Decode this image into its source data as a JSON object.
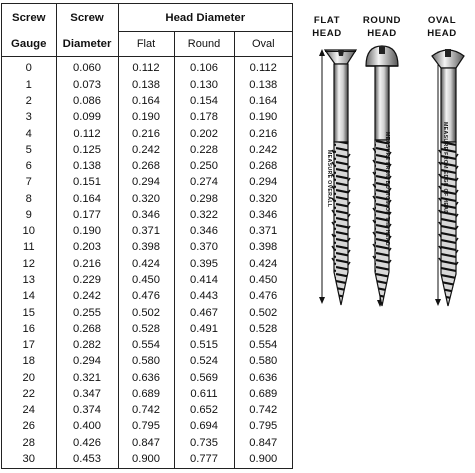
{
  "table": {
    "headers": {
      "screw_gauge_line1": "Screw",
      "screw_gauge_line2": "Gauge",
      "screw_diameter_line1": "Screw",
      "screw_diameter_line2": "Diameter",
      "head_diameter": "Head Diameter",
      "flat": "Flat",
      "round": "Round",
      "oval": "Oval"
    },
    "rows": [
      {
        "gauge": "0",
        "diameter": "0.060",
        "flat": "0.112",
        "round": "0.106",
        "oval": "0.112"
      },
      {
        "gauge": "1",
        "diameter": "0.073",
        "flat": "0.138",
        "round": "0.130",
        "oval": "0.138"
      },
      {
        "gauge": "2",
        "diameter": "0.086",
        "flat": "0.164",
        "round": "0.154",
        "oval": "0.164"
      },
      {
        "gauge": "3",
        "diameter": "0.099",
        "flat": "0.190",
        "round": "0.178",
        "oval": "0.190"
      },
      {
        "gauge": "4",
        "diameter": "0.112",
        "flat": "0.216",
        "round": "0.202",
        "oval": "0.216"
      },
      {
        "gauge": "5",
        "diameter": "0.125",
        "flat": "0.242",
        "round": "0.228",
        "oval": "0.242"
      },
      {
        "gauge": "6",
        "diameter": "0.138",
        "flat": "0.268",
        "round": "0.250",
        "oval": "0.268"
      },
      {
        "gauge": "7",
        "diameter": "0.151",
        "flat": "0.294",
        "round": "0.274",
        "oval": "0.294"
      },
      {
        "gauge": "8",
        "diameter": "0.164",
        "flat": "0.320",
        "round": "0.298",
        "oval": "0.320"
      },
      {
        "gauge": "9",
        "diameter": "0.177",
        "flat": "0.346",
        "round": "0.322",
        "oval": "0.346"
      },
      {
        "gauge": "10",
        "diameter": "0.190",
        "flat": "0.371",
        "round": "0.346",
        "oval": "0.371"
      },
      {
        "gauge": "11",
        "diameter": "0.203",
        "flat": "0.398",
        "round": "0.370",
        "oval": "0.398"
      },
      {
        "gauge": "12",
        "diameter": "0.216",
        "flat": "0.424",
        "round": "0.395",
        "oval": "0.424"
      },
      {
        "gauge": "13",
        "diameter": "0.229",
        "flat": "0.450",
        "round": "0.414",
        "oval": "0.450"
      },
      {
        "gauge": "14",
        "diameter": "0.242",
        "flat": "0.476",
        "round": "0.443",
        "oval": "0.476"
      },
      {
        "gauge": "15",
        "diameter": "0.255",
        "flat": "0.502",
        "round": "0.467",
        "oval": "0.502"
      },
      {
        "gauge": "16",
        "diameter": "0.268",
        "flat": "0.528",
        "round": "0.491",
        "oval": "0.528"
      },
      {
        "gauge": "17",
        "diameter": "0.282",
        "flat": "0.554",
        "round": "0.515",
        "oval": "0.554"
      },
      {
        "gauge": "18",
        "diameter": "0.294",
        "flat": "0.580",
        "round": "0.524",
        "oval": "0.580"
      },
      {
        "gauge": "20",
        "diameter": "0.321",
        "flat": "0.636",
        "round": "0.569",
        "oval": "0.636"
      },
      {
        "gauge": "22",
        "diameter": "0.347",
        "flat": "0.689",
        "round": "0.611",
        "oval": "0.689"
      },
      {
        "gauge": "24",
        "diameter": "0.374",
        "flat": "0.742",
        "round": "0.652",
        "oval": "0.742"
      },
      {
        "gauge": "26",
        "diameter": "0.400",
        "flat": "0.795",
        "round": "0.694",
        "oval": "0.795"
      },
      {
        "gauge": "28",
        "diameter": "0.426",
        "flat": "0.847",
        "round": "0.735",
        "oval": "0.847"
      },
      {
        "gauge": "30",
        "diameter": "0.453",
        "flat": "0.900",
        "round": "0.777",
        "oval": "0.900"
      }
    ]
  },
  "illustration": {
    "flat_head_line1": "FLAT",
    "flat_head_line2": "HEAD",
    "round_head_line1": "ROUND",
    "round_head_line2": "HEAD",
    "oval_head_line1": "OVAL",
    "oval_head_line2": "HEAD",
    "flat_measure_note": "MEASURE OVERALL",
    "round_measure_note": "MEASURE FROM BOTTOM OF THE HEAD",
    "oval_measure_note": "MEASURE FROM EDGE OF HEAD",
    "ink_color": "#1a1a1a",
    "icons": [
      "flat-head-screw-icon",
      "round-head-screw-icon",
      "oval-head-screw-icon"
    ]
  }
}
